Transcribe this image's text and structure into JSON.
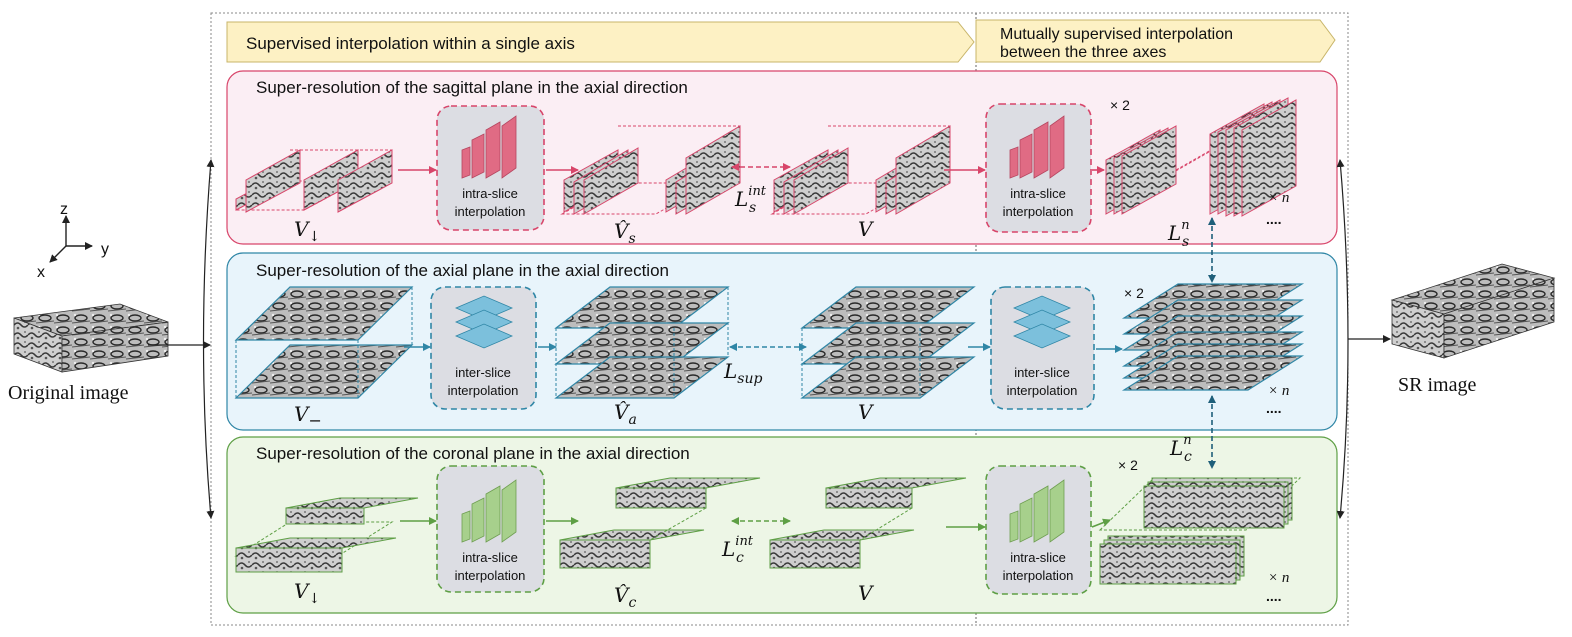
{
  "header": {
    "left_label": "Supervised  interpolation within a single axis",
    "right_label_line1": "Mutually supervised  interpolation",
    "right_label_line2": "between the three axes"
  },
  "input": {
    "axes": {
      "z": "z",
      "y": "y",
      "x": "x"
    },
    "label": "Original image"
  },
  "output": {
    "label": "SR image"
  },
  "rows": [
    {
      "id": "sagittal",
      "title": "Super-resolution of the sagittal plane in the axial direction",
      "module1": {
        "line1": "intra-slice",
        "line2": "interpolation"
      },
      "module2": {
        "line1": "intra-slice",
        "line2": "interpolation"
      },
      "input_sym": {
        "base": "V",
        "sub": "↓"
      },
      "pred_sym": {
        "base": "V̂",
        "sub": "s"
      },
      "gt_sym": "V",
      "loss": {
        "base": "L",
        "sub": "s",
        "sup": "int"
      },
      "out_loss": {
        "base": "L",
        "sub": "s",
        "sup": "n"
      },
      "times2": "× 2",
      "timesn": "× n",
      "dots": "...."
    },
    {
      "id": "axial",
      "title": "Super-resolution of the axial plane in the axial direction",
      "module1": {
        "line1": "inter-slice",
        "line2": "interpolation"
      },
      "module2": {
        "line1": "inter-slice",
        "line2": "interpolation"
      },
      "input_sym": {
        "base": "V",
        "sub": "−"
      },
      "pred_sym": {
        "base": "V̂",
        "sub": "a"
      },
      "gt_sym": "V",
      "loss": {
        "base": "L",
        "sub": "sup",
        "sup": ""
      },
      "times2": "× 2",
      "timesn": "× n",
      "dots": "...."
    },
    {
      "id": "coronal",
      "title": "Super-resolution of the coronal plane in the axial direction",
      "module1": {
        "line1": "intra-slice",
        "line2": "interpolation"
      },
      "module2": {
        "line1": "intra-slice",
        "line2": "interpolation"
      },
      "input_sym": {
        "base": "V",
        "sub": "↓"
      },
      "pred_sym": {
        "base": "V̂",
        "sub": "c"
      },
      "gt_sym": "V",
      "loss": {
        "base": "L",
        "sub": "c",
        "sup": "int"
      },
      "out_loss": {
        "base": "L",
        "sub": "c",
        "sup": "n"
      },
      "times2": "× 2",
      "timesn": "× n",
      "dots": "...."
    }
  ],
  "colors": {
    "sagittal_fill": "#fbeef4",
    "sagittal_stroke": "#d8456a",
    "sagittal_net": "#e06b84",
    "axial_fill": "#e8f4fb",
    "axial_stroke": "#2f86a6",
    "axial_net": "#7cc0dc",
    "coronal_fill": "#edf6e6",
    "coronal_stroke": "#5e9f45",
    "coronal_net": "#a7d08c",
    "module_fill": "#dcdde3",
    "banner_fill": "#fdf1c4"
  }
}
